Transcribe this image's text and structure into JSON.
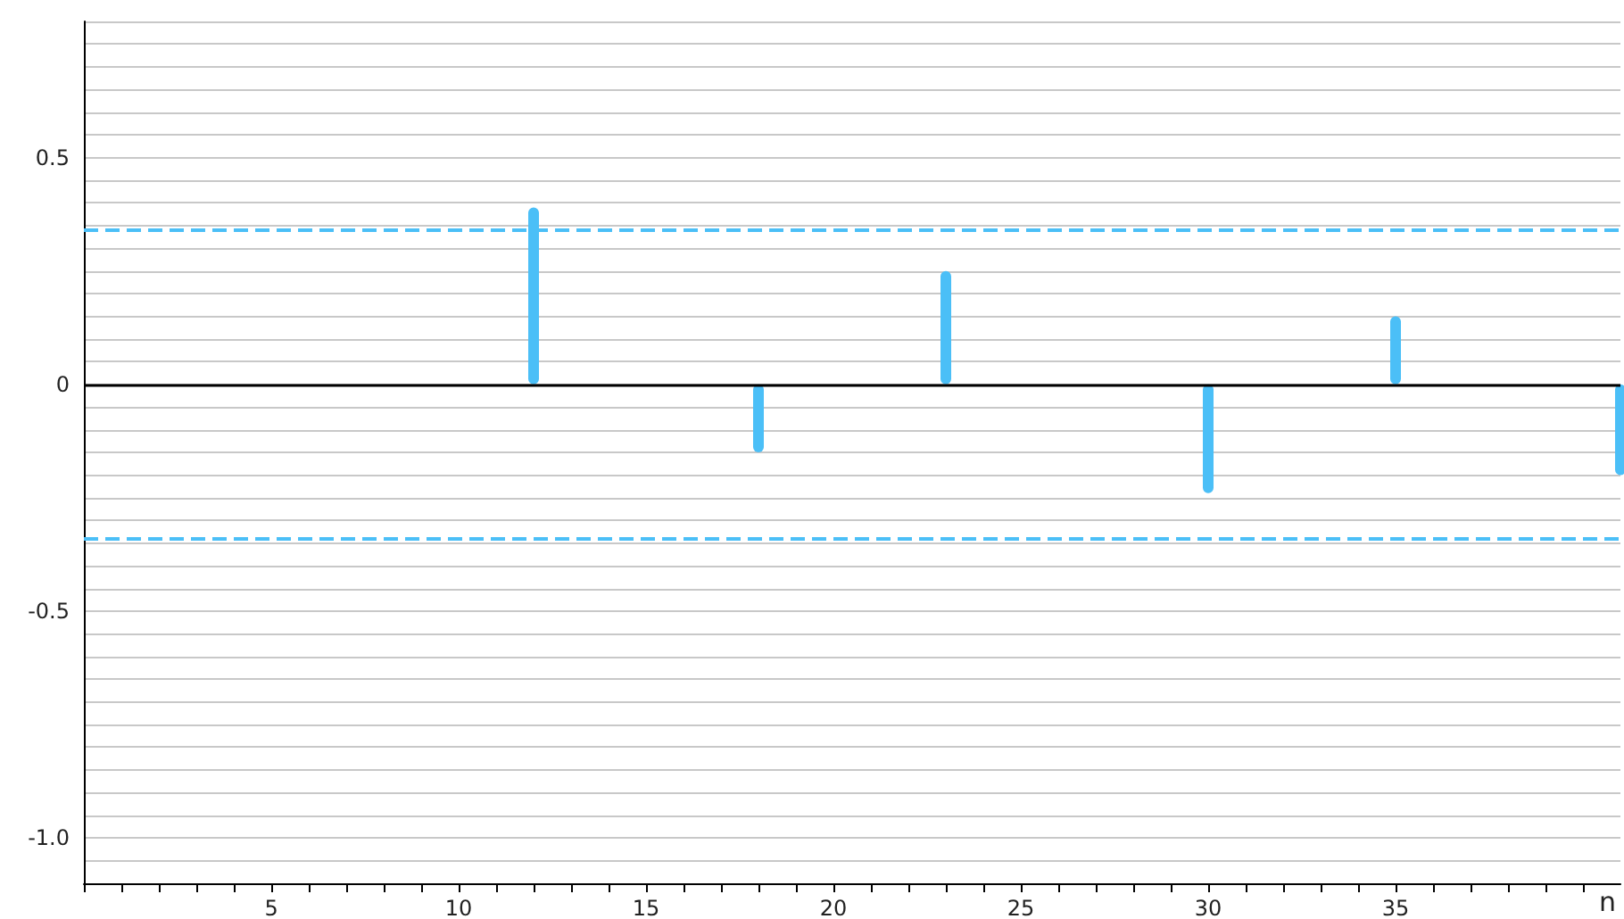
{
  "chart_data": {
    "type": "bar",
    "xlabel": "n",
    "x": [
      12,
      18,
      23,
      30,
      35,
      41
    ],
    "series": [
      {
        "color": "#4bbff7",
        "values": [
          0.39,
          -0.15,
          0.25,
          -0.24,
          0.15,
          -0.2
        ]
      }
    ],
    "xlim": [
      0,
      41
    ],
    "xticks": [
      {
        "value": 0,
        "label": null
      },
      {
        "value": 1,
        "label": null
      },
      {
        "value": 2,
        "label": null
      },
      {
        "value": 3,
        "label": null
      },
      {
        "value": 4,
        "label": null
      },
      5,
      {
        "value": 6,
        "label": null
      },
      {
        "value": 7,
        "label": null
      },
      {
        "value": 8,
        "label": null
      },
      {
        "value": 9,
        "label": null
      },
      10,
      {
        "value": 11,
        "label": null
      },
      {
        "value": 12,
        "label": null
      },
      {
        "value": 13,
        "label": null
      },
      {
        "value": 14,
        "label": null
      },
      15,
      {
        "value": 16,
        "label": null
      },
      {
        "value": 17,
        "label": null
      },
      {
        "value": 18,
        "label": null
      },
      {
        "value": 19,
        "label": null
      },
      20,
      {
        "value": 21,
        "label": null
      },
      {
        "value": 22,
        "label": null
      },
      {
        "value": 23,
        "label": null
      },
      {
        "value": 24,
        "label": null
      },
      25,
      {
        "value": 26,
        "label": null
      },
      {
        "value": 27,
        "label": null
      },
      {
        "value": 28,
        "label": null
      },
      {
        "value": 29,
        "label": null
      },
      30,
      {
        "value": 31,
        "label": null
      },
      {
        "value": 32,
        "label": null
      },
      {
        "value": 33,
        "label": null
      },
      {
        "value": 34,
        "label": null
      },
      35,
      {
        "value": 36,
        "label": null
      },
      {
        "value": 37,
        "label": null
      },
      {
        "value": 38,
        "label": null
      },
      {
        "value": 39,
        "label": null
      },
      {
        "value": 40,
        "label": null
      }
    ],
    "ylim": [
      -1.1,
      0.8
    ],
    "yticks": [
      {
        "value": -1.1,
        "label": null
      },
      {
        "value": -1.05,
        "label": null
      },
      {
        "value": -1,
        "label": "-1.0"
      },
      {
        "value": -0.95,
        "label": null
      },
      {
        "value": -0.9,
        "label": null
      },
      {
        "value": -0.85,
        "label": null
      },
      {
        "value": -0.8,
        "label": null
      },
      {
        "value": -0.75,
        "label": null
      },
      {
        "value": -0.7,
        "label": null
      },
      {
        "value": -0.65,
        "label": null
      },
      {
        "value": -0.6,
        "label": null
      },
      {
        "value": -0.55,
        "label": null
      },
      -0.5,
      {
        "value": -0.45,
        "label": null
      },
      {
        "value": -0.4,
        "label": null
      },
      {
        "value": -0.35,
        "label": null
      },
      {
        "value": -0.3,
        "label": null
      },
      {
        "value": -0.25,
        "label": null
      },
      {
        "value": -0.2,
        "label": null
      },
      {
        "value": -0.15,
        "label": null
      },
      {
        "value": -0.1,
        "label": null
      },
      {
        "value": -0.05,
        "label": null
      },
      0,
      {
        "value": 0.05,
        "label": null
      },
      {
        "value": 0.1,
        "label": null
      },
      {
        "value": 0.15,
        "label": null
      },
      {
        "value": 0.2,
        "label": null
      },
      {
        "value": 0.25,
        "label": null
      },
      {
        "value": 0.3,
        "label": null
      },
      {
        "value": 0.35,
        "label": null
      },
      {
        "value": 0.4,
        "label": null
      },
      {
        "value": 0.45,
        "label": null
      },
      0.5,
      {
        "value": 0.55,
        "label": null
      },
      {
        "value": 0.6,
        "label": null
      },
      {
        "value": 0.65,
        "label": null
      },
      {
        "value": 0.7,
        "label": null
      },
      {
        "value": 0.75,
        "label": null
      },
      {
        "value": 0.8,
        "label": null
      }
    ],
    "ref_lines": [
      {
        "axis": "y",
        "value": 0,
        "color": "#000000",
        "line_style": "solid"
      },
      {
        "axis": "y",
        "value": 0.345,
        "color": "#4bbff7",
        "line_style": "dashed"
      },
      {
        "axis": "y",
        "value": -0.345,
        "color": "#4bbff7",
        "line_style": "dashed"
      }
    ],
    "grid": "y"
  }
}
